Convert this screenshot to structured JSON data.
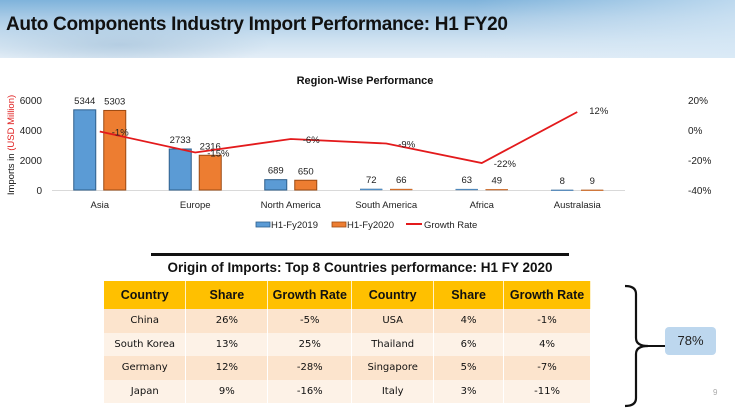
{
  "header": {
    "title": "Auto Components Industry Import Performance: H1 FY20"
  },
  "chart_data": {
    "type": "bar",
    "title": "Region-Wise Performance",
    "ylabel_parts": [
      "Imports  in ",
      "(USD Million)"
    ],
    "ylabel_colors": [
      "#111111",
      "#e02020"
    ],
    "categories": [
      "Asia",
      "Europe",
      "North America",
      "South America",
      "Africa",
      "Australasia"
    ],
    "series": [
      {
        "name": "H1-Fy2019",
        "type": "bar",
        "axis": "left",
        "color": "#5b9bd5",
        "values": [
          5344,
          2733,
          689,
          72,
          63,
          8
        ]
      },
      {
        "name": "H1-Fy2020",
        "type": "bar",
        "axis": "left",
        "color": "#ed7d31",
        "values": [
          5303,
          2316,
          650,
          66,
          49,
          9
        ]
      },
      {
        "name": "Growth Rate",
        "type": "line",
        "axis": "right",
        "color": "#e31a1c",
        "values": [
          -1,
          -15,
          -6,
          -9,
          -22,
          12
        ],
        "labels": [
          "-1%",
          "-15%",
          "-6%",
          "-9%",
          "-22%",
          "12%"
        ]
      }
    ],
    "y_left": {
      "range": [
        0,
        6000
      ],
      "ticks": [
        0,
        2000,
        4000,
        6000
      ],
      "tick_labels": [
        "0",
        "2000",
        "4000",
        "6000"
      ]
    },
    "y_right": {
      "range": [
        -40,
        20
      ],
      "ticks": [
        -40,
        -20,
        0,
        20
      ],
      "tick_labels": [
        "-40%",
        "-20%",
        "0%",
        "20%"
      ]
    },
    "legend": {
      "position": "bottom",
      "entries": [
        "H1-Fy2019",
        "H1-Fy2020",
        "Growth Rate"
      ]
    },
    "grid": false
  },
  "table": {
    "title": "Origin of Imports: Top 8 Countries performance: H1 FY 2020",
    "headers": [
      "Country",
      "Share",
      "Growth Rate",
      "Country",
      "Share",
      "Growth Rate"
    ],
    "rows": [
      [
        "China",
        "26%",
        "-5%",
        "USA",
        "4%",
        "-1%"
      ],
      [
        "South Korea",
        "13%",
        "25%",
        "Thailand",
        "6%",
        "4%"
      ],
      [
        "Germany",
        "12%",
        "-28%",
        "Singapore",
        "5%",
        "-7%"
      ],
      [
        "Japan",
        "9%",
        "-16%",
        "Italy",
        "3%",
        "-11%"
      ]
    ]
  },
  "summary": {
    "total_share": "78%"
  },
  "footer": {
    "page_number": "9"
  }
}
